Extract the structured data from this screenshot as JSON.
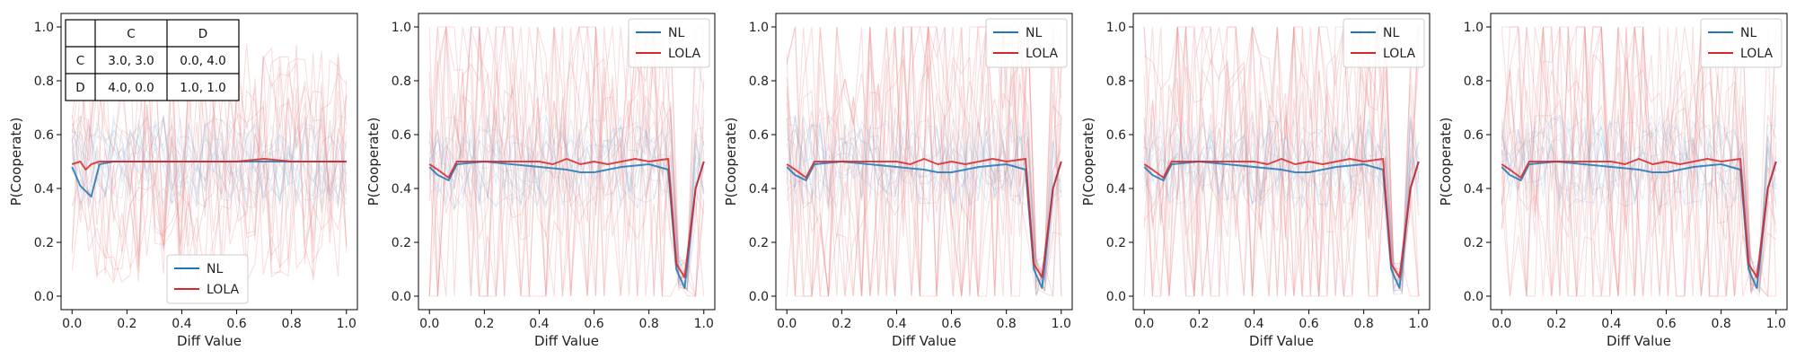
{
  "chart_data": [
    {
      "type": "line",
      "xlabel": "Diff Value",
      "ylabel": "P(Cooperate)",
      "xlim": [
        -0.04,
        1.04
      ],
      "ylim": [
        -0.05,
        1.05
      ],
      "xticks": [
        "0.0",
        "0.2",
        "0.4",
        "0.6",
        "0.8",
        "1.0"
      ],
      "yticks": [
        "0.0",
        "0.2",
        "0.4",
        "0.6",
        "0.8",
        "1.0"
      ],
      "legend_position": "lower-center",
      "series": [
        {
          "name": "NL",
          "color": "#1f77b4",
          "x": [
            0.0,
            0.03,
            0.07,
            0.1,
            0.15,
            0.2,
            0.3,
            0.4,
            0.5,
            0.6,
            0.7,
            0.8,
            0.9,
            1.0
          ],
          "y": [
            0.48,
            0.41,
            0.37,
            0.49,
            0.5,
            0.5,
            0.5,
            0.5,
            0.5,
            0.5,
            0.5,
            0.5,
            0.5,
            0.5
          ]
        },
        {
          "name": "LOLA",
          "color": "#d62728",
          "x": [
            0.0,
            0.03,
            0.05,
            0.07,
            0.1,
            0.15,
            0.2,
            0.3,
            0.4,
            0.5,
            0.6,
            0.7,
            0.8,
            0.9,
            1.0
          ],
          "y": [
            0.49,
            0.5,
            0.47,
            0.49,
            0.5,
            0.5,
            0.5,
            0.5,
            0.5,
            0.5,
            0.5,
            0.51,
            0.5,
            0.5,
            0.5
          ]
        }
      ],
      "payoff_table": {
        "columns": [
          "",
          "C",
          "D"
        ],
        "rows": [
          [
            "C",
            "3.0, 3.0",
            "0.0, 4.0"
          ],
          [
            "D",
            "4.0, 0.0",
            "1.0, 1.0"
          ]
        ]
      }
    },
    {
      "type": "line",
      "xlabel": "Diff Value",
      "ylabel": "P(Cooperate)",
      "xlim": [
        -0.04,
        1.04
      ],
      "ylim": [
        -0.05,
        1.05
      ],
      "xticks": [
        "0.0",
        "0.2",
        "0.4",
        "0.6",
        "0.8",
        "1.0"
      ],
      "yticks": [
        "0.0",
        "0.2",
        "0.4",
        "0.6",
        "0.8",
        "1.0"
      ],
      "legend_position": "top-right",
      "series": [
        {
          "name": "NL",
          "color": "#1f77b4",
          "x": [
            0.0,
            0.03,
            0.07,
            0.1,
            0.2,
            0.3,
            0.4,
            0.5,
            0.55,
            0.6,
            0.65,
            0.7,
            0.8,
            0.87,
            0.9,
            0.93,
            0.97,
            1.0
          ],
          "y": [
            0.48,
            0.45,
            0.43,
            0.49,
            0.5,
            0.49,
            0.48,
            0.47,
            0.46,
            0.46,
            0.47,
            0.48,
            0.49,
            0.47,
            0.1,
            0.03,
            0.4,
            0.5
          ]
        },
        {
          "name": "LOLA",
          "color": "#d62728",
          "x": [
            0.0,
            0.03,
            0.07,
            0.1,
            0.2,
            0.3,
            0.4,
            0.45,
            0.5,
            0.55,
            0.6,
            0.65,
            0.7,
            0.75,
            0.8,
            0.87,
            0.9,
            0.93,
            0.97,
            1.0
          ],
          "y": [
            0.49,
            0.47,
            0.44,
            0.5,
            0.5,
            0.5,
            0.5,
            0.49,
            0.51,
            0.49,
            0.5,
            0.49,
            0.5,
            0.51,
            0.5,
            0.51,
            0.12,
            0.07,
            0.4,
            0.5
          ]
        }
      ]
    },
    {
      "type": "line",
      "xlabel": "Diff Value",
      "ylabel": "P(Cooperate)",
      "xlim": [
        -0.04,
        1.04
      ],
      "ylim": [
        -0.05,
        1.05
      ],
      "xticks": [
        "0.0",
        "0.2",
        "0.4",
        "0.6",
        "0.8",
        "1.0"
      ],
      "yticks": [
        "0.0",
        "0.2",
        "0.4",
        "0.6",
        "0.8",
        "1.0"
      ],
      "legend_position": "top-right",
      "series": [
        {
          "name": "NL",
          "color": "#1f77b4",
          "x": [
            0.0,
            0.03,
            0.07,
            0.1,
            0.2,
            0.3,
            0.4,
            0.5,
            0.55,
            0.6,
            0.65,
            0.7,
            0.8,
            0.87,
            0.9,
            0.93,
            0.97,
            1.0
          ],
          "y": [
            0.48,
            0.45,
            0.43,
            0.49,
            0.5,
            0.49,
            0.48,
            0.47,
            0.46,
            0.46,
            0.47,
            0.48,
            0.49,
            0.47,
            0.1,
            0.03,
            0.4,
            0.5
          ]
        },
        {
          "name": "LOLA",
          "color": "#d62728",
          "x": [
            0.0,
            0.03,
            0.07,
            0.1,
            0.2,
            0.3,
            0.4,
            0.45,
            0.5,
            0.55,
            0.6,
            0.65,
            0.7,
            0.75,
            0.8,
            0.87,
            0.9,
            0.93,
            0.97,
            1.0
          ],
          "y": [
            0.49,
            0.47,
            0.44,
            0.5,
            0.5,
            0.5,
            0.5,
            0.49,
            0.51,
            0.49,
            0.5,
            0.49,
            0.5,
            0.51,
            0.5,
            0.51,
            0.12,
            0.07,
            0.4,
            0.5
          ]
        }
      ]
    },
    {
      "type": "line",
      "xlabel": "Diff Value",
      "ylabel": "P(Cooperate)",
      "xlim": [
        -0.04,
        1.04
      ],
      "ylim": [
        -0.05,
        1.05
      ],
      "xticks": [
        "0.0",
        "0.2",
        "0.4",
        "0.6",
        "0.8",
        "1.0"
      ],
      "yticks": [
        "0.0",
        "0.2",
        "0.4",
        "0.6",
        "0.8",
        "1.0"
      ],
      "legend_position": "top-right",
      "series": [
        {
          "name": "NL",
          "color": "#1f77b4",
          "x": [
            0.0,
            0.03,
            0.07,
            0.1,
            0.2,
            0.3,
            0.4,
            0.5,
            0.55,
            0.6,
            0.65,
            0.7,
            0.8,
            0.87,
            0.9,
            0.93,
            0.97,
            1.0
          ],
          "y": [
            0.48,
            0.45,
            0.43,
            0.49,
            0.5,
            0.49,
            0.48,
            0.47,
            0.46,
            0.46,
            0.47,
            0.48,
            0.49,
            0.47,
            0.1,
            0.03,
            0.4,
            0.5
          ]
        },
        {
          "name": "LOLA",
          "color": "#d62728",
          "x": [
            0.0,
            0.03,
            0.07,
            0.1,
            0.2,
            0.3,
            0.4,
            0.45,
            0.5,
            0.55,
            0.6,
            0.65,
            0.7,
            0.75,
            0.8,
            0.87,
            0.9,
            0.93,
            0.97,
            1.0
          ],
          "y": [
            0.49,
            0.47,
            0.44,
            0.5,
            0.5,
            0.5,
            0.5,
            0.49,
            0.51,
            0.49,
            0.5,
            0.49,
            0.5,
            0.51,
            0.5,
            0.51,
            0.12,
            0.07,
            0.4,
            0.5
          ]
        }
      ]
    },
    {
      "type": "line",
      "xlabel": "Diff Value",
      "ylabel": "P(Cooperate)",
      "xlim": [
        -0.04,
        1.04
      ],
      "ylim": [
        -0.05,
        1.05
      ],
      "xticks": [
        "0.0",
        "0.2",
        "0.4",
        "0.6",
        "0.8",
        "1.0"
      ],
      "yticks": [
        "0.0",
        "0.2",
        "0.4",
        "0.6",
        "0.8",
        "1.0"
      ],
      "legend_position": "top-right",
      "series": [
        {
          "name": "NL",
          "color": "#1f77b4",
          "x": [
            0.0,
            0.03,
            0.07,
            0.1,
            0.2,
            0.3,
            0.4,
            0.5,
            0.55,
            0.6,
            0.65,
            0.7,
            0.8,
            0.87,
            0.9,
            0.93,
            0.97,
            1.0
          ],
          "y": [
            0.48,
            0.45,
            0.43,
            0.49,
            0.5,
            0.49,
            0.48,
            0.47,
            0.46,
            0.46,
            0.47,
            0.48,
            0.49,
            0.47,
            0.1,
            0.03,
            0.4,
            0.5
          ]
        },
        {
          "name": "LOLA",
          "color": "#d62728",
          "x": [
            0.0,
            0.03,
            0.07,
            0.1,
            0.2,
            0.3,
            0.4,
            0.45,
            0.5,
            0.55,
            0.6,
            0.65,
            0.7,
            0.75,
            0.8,
            0.87,
            0.9,
            0.93,
            0.97,
            1.0
          ],
          "y": [
            0.49,
            0.47,
            0.44,
            0.5,
            0.5,
            0.5,
            0.5,
            0.49,
            0.51,
            0.49,
            0.5,
            0.49,
            0.5,
            0.51,
            0.5,
            0.51,
            0.12,
            0.07,
            0.4,
            0.5
          ]
        }
      ]
    }
  ]
}
